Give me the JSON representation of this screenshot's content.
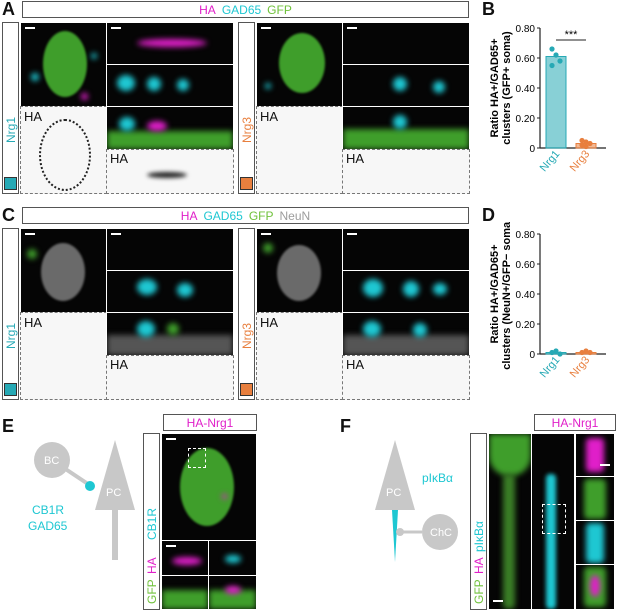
{
  "colors": {
    "ha": "#e01fc9",
    "gad65": "#1ec7d2",
    "gfp": "#6fc13a",
    "neun": "#9c9c9c",
    "nrg1": "#26a9b5",
    "nrg3": "#e87f3e",
    "pink": "#e01fc9"
  },
  "panels": {
    "A": "A",
    "B": "B",
    "C": "C",
    "D": "D",
    "E": "E",
    "F": "F"
  },
  "headerA": {
    "ha": "HA",
    "gad65": "GAD65",
    "gfp": "GFP"
  },
  "headerC": {
    "ha": "HA",
    "gad65": "GAD65",
    "gfp": "GFP",
    "neun": "NeuN"
  },
  "labels": {
    "nrg1": "Nrg1",
    "nrg3": "Nrg3",
    "ha": "HA"
  },
  "chartB": {
    "ylabel1": "Ratio HA+/GAD65+",
    "ylabel2": "clusters (GFP+ soma)",
    "sig": "***",
    "ticks": [
      "0",
      "0.20",
      "0.40",
      "0.60",
      "0.80"
    ]
  },
  "chartD": {
    "ylabel1": "Ratio HA+/GAD65+",
    "ylabel2": "clusters (NeuN+/GFP− soma)",
    "ticks": [
      "0",
      "0.20",
      "0.40",
      "0.60",
      "0.80"
    ]
  },
  "chart_data": [
    {
      "type": "bar",
      "panel": "B",
      "categories": [
        "Nrg1",
        "Nrg3"
      ],
      "values": [
        0.61,
        0.03
      ],
      "points": [
        [
          0.66,
          0.62,
          0.58,
          0.55
        ],
        [
          0.02,
          0.04,
          0.03,
          0.05,
          0.01
        ]
      ],
      "ylabel": "Ratio HA+/GAD65+ clusters (GFP+ soma)",
      "ylim": [
        0,
        0.8
      ],
      "annotation": "***"
    },
    {
      "type": "bar",
      "panel": "D",
      "categories": [
        "Nrg1",
        "Nrg3"
      ],
      "values": [
        0.01,
        0.01
      ],
      "points": [
        [
          0.01,
          0.02,
          0.0
        ],
        [
          0.01,
          0.02,
          0.01
        ]
      ],
      "ylabel": "Ratio HA+/GAD65+ clusters (NeuN+/GFP− soma)",
      "ylim": [
        0,
        0.8
      ]
    }
  ],
  "panelE": {
    "header": "HA-Nrg1",
    "bc": "BC",
    "pc": "PC",
    "cb1r": "CB1R",
    "gad65": "GAD65",
    "gfp": "GFP",
    "ha": "HA"
  },
  "panelF": {
    "header": "HA-Nrg1",
    "pc": "PC",
    "chc": "ChC",
    "pikba": "pIκBα",
    "gfp": "GFP",
    "ha": "HA"
  }
}
